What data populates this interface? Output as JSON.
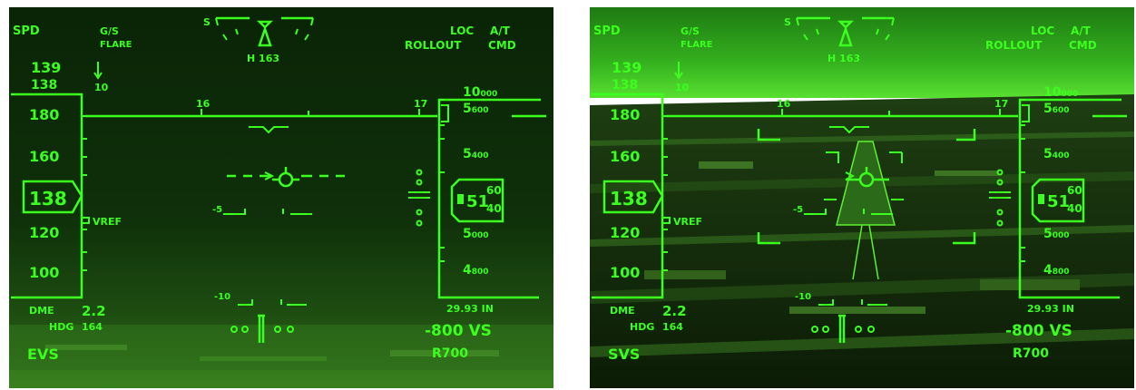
{
  "colors": {
    "symbology": "#3bff1e",
    "evs_background": "#0c2c08",
    "svs_background": "#1a4a10"
  },
  "panels": [
    {
      "id": "evs",
      "mode_label": "EVS",
      "spd_label": "SPD",
      "gs_label": "G/S",
      "flare_label": "FLARE",
      "loc_label": "LOC",
      "rollout_label": "ROLLOUT",
      "at_label": "A/T",
      "cmd_label": "CMD",
      "s_label": "S",
      "heading_bug_label": "H 163",
      "speed_target": "139",
      "speed_target2": "138",
      "speed_trend_value": "10",
      "speed_ticks": [
        "180",
        "160",
        "120",
        "100"
      ],
      "airspeed": "138",
      "vref_label": "VREF",
      "heading_ticks": [
        "16",
        "17"
      ],
      "alt_top": "10",
      "alt_top_small": "000",
      "alt_ticks": [
        {
          "big": "5",
          "small": "600"
        },
        {
          "big": "5",
          "small": "400"
        },
        {
          "big": "5",
          "small": "000"
        },
        {
          "big": "4",
          "small": "800"
        }
      ],
      "altitude_big": "51",
      "altitude_small_top": "60",
      "altitude_small_bottom": "40",
      "baro_setting": "29.93 IN",
      "pitch_minus5": "-5",
      "pitch_minus10": "-10",
      "dme_label": "DME",
      "dme_value": "2.2",
      "hdg_label": "HDG",
      "hdg_value": "164",
      "vs_value": "-800 VS",
      "radio_alt": "R700"
    },
    {
      "id": "svs",
      "mode_label": "SVS",
      "spd_label": "SPD",
      "gs_label": "G/S",
      "flare_label": "FLARE",
      "loc_label": "LOC",
      "rollout_label": "ROLLOUT",
      "at_label": "A/T",
      "cmd_label": "CMD",
      "s_label": "S",
      "heading_bug_label": "H 163",
      "speed_target": "139",
      "speed_target2": "138",
      "speed_trend_value": "10",
      "speed_ticks": [
        "180",
        "160",
        "120",
        "100"
      ],
      "airspeed": "138",
      "vref_label": "VREF",
      "heading_ticks": [
        "16",
        "17"
      ],
      "alt_top": "10",
      "alt_top_small": "000",
      "alt_ticks": [
        {
          "big": "5",
          "small": "600"
        },
        {
          "big": "5",
          "small": "400"
        },
        {
          "big": "5",
          "small": "000"
        },
        {
          "big": "4",
          "small": "800"
        }
      ],
      "altitude_big": "51",
      "altitude_small_top": "60",
      "altitude_small_bottom": "40",
      "baro_setting": "29.93 IN",
      "pitch_minus5": "-5",
      "pitch_minus10": "-10",
      "dme_label": "DME",
      "dme_value": "2.2",
      "hdg_label": "HDG",
      "hdg_value": "164",
      "vs_value": "-800 VS",
      "radio_alt": "R700"
    }
  ]
}
